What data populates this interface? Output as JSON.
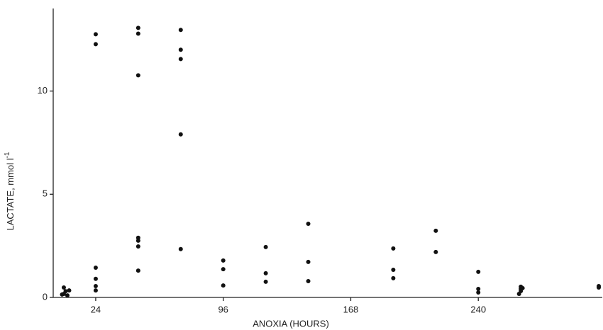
{
  "chart_data": {
    "type": "scatter",
    "x_label": "ANOXIA (HOURS)",
    "y_label": "LACTATE, mmol l",
    "y_label_sup": "-1",
    "x": [
      5,
      6,
      7,
      8,
      9,
      6,
      24,
      24,
      24,
      24,
      24,
      24,
      48,
      48,
      48,
      48,
      48,
      48,
      48,
      72,
      72,
      72,
      72,
      72,
      96,
      96,
      96,
      120,
      120,
      120,
      144,
      144,
      144,
      192,
      192,
      192,
      216,
      216,
      240,
      240,
      240,
      264,
      264,
      264,
      263,
      265,
      308,
      308
    ],
    "values": [
      0.14,
      0.48,
      0.3,
      0.1,
      0.34,
      0.17,
      12.75,
      12.27,
      1.44,
      0.9,
      0.55,
      0.34,
      13.06,
      12.78,
      10.76,
      2.89,
      2.75,
      2.47,
      1.3,
      12.96,
      12.0,
      11.55,
      7.9,
      2.34,
      1.79,
      1.37,
      0.58,
      2.44,
      1.17,
      0.76,
      3.57,
      1.72,
      0.79,
      2.37,
      1.34,
      0.93,
      3.23,
      2.2,
      1.24,
      0.41,
      0.24,
      0.52,
      0.41,
      0.31,
      0.17,
      0.45,
      0.55,
      0.48
    ],
    "color": "#111111",
    "xlim": [
      0,
      310
    ],
    "xticks": [
      24,
      96,
      168,
      240
    ],
    "ylim": [
      0,
      14
    ],
    "yticks": [
      0,
      5,
      10
    ]
  }
}
